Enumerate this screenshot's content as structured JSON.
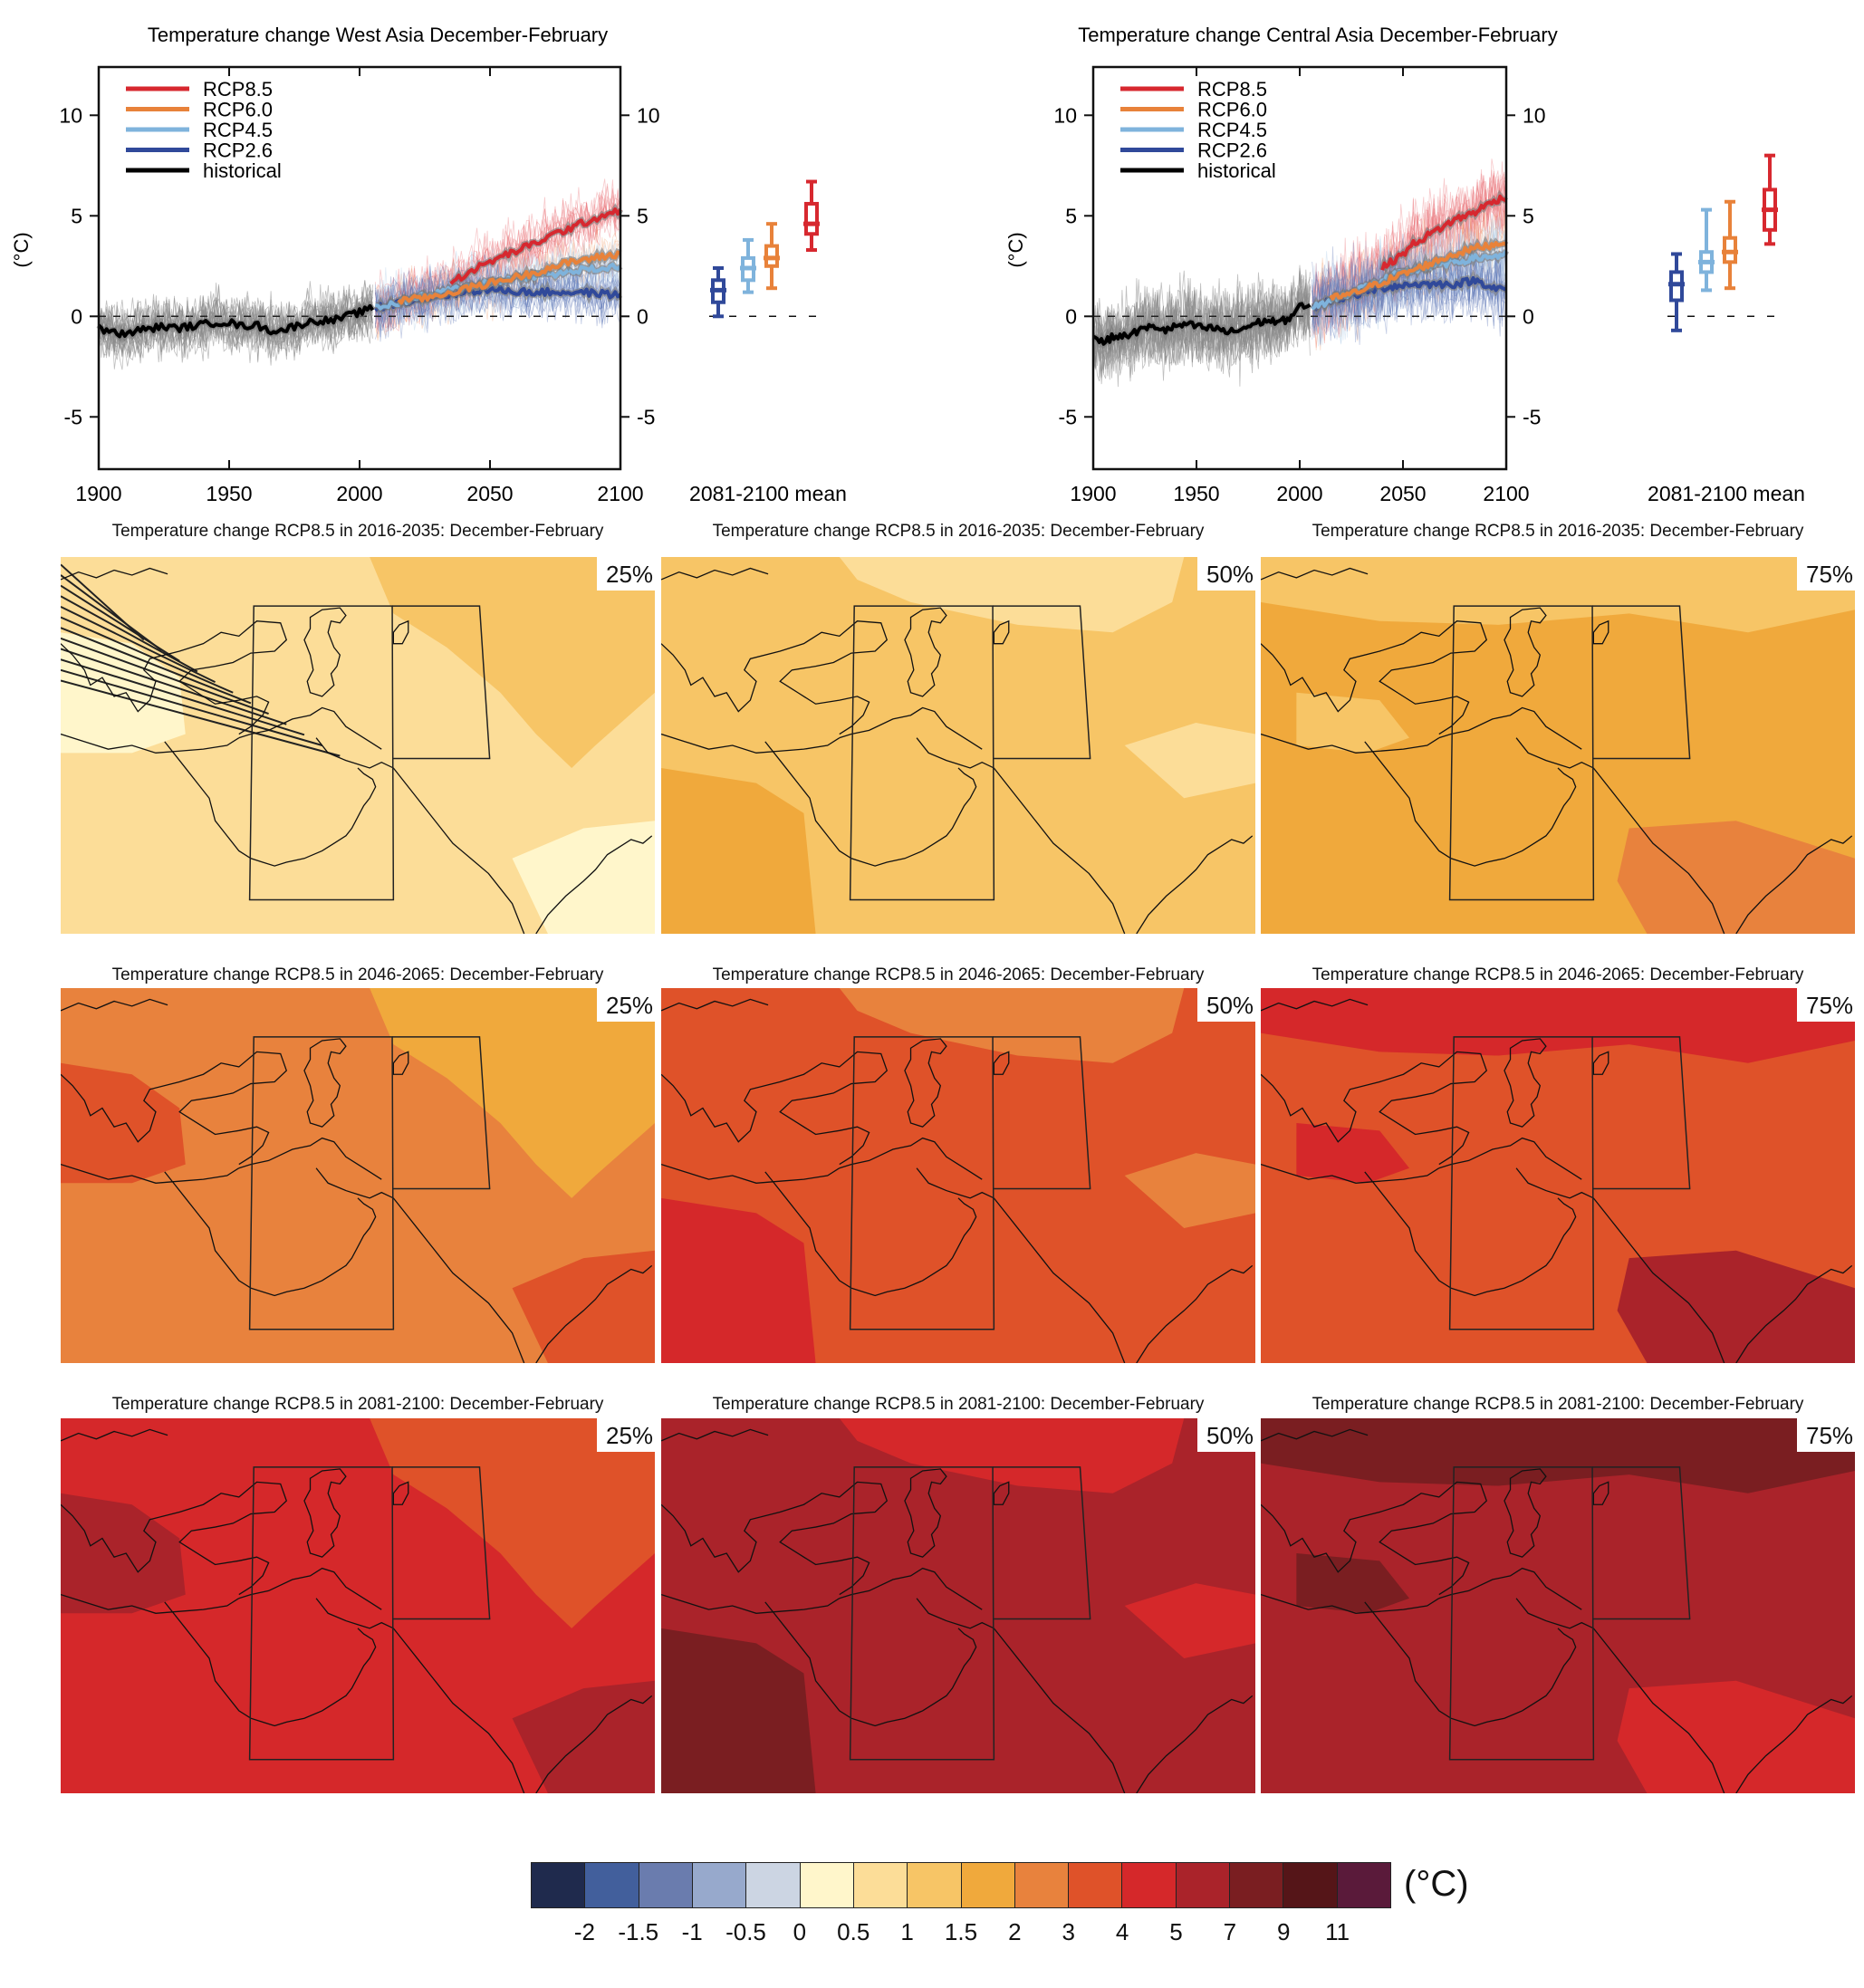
{
  "chart_data": [
    {
      "type": "line",
      "id": "west-asia",
      "title": "Temperature change West Asia December-February",
      "ylabel": "(°C)",
      "xlabel": "",
      "xlim": [
        1900,
        2100
      ],
      "ylim": [
        -7.6,
        12.4
      ],
      "xticks": [
        1900,
        1950,
        2000,
        2050,
        2100
      ],
      "yticks": [
        -5,
        0,
        5,
        10
      ],
      "legend_position": "top-left",
      "legend": [
        {
          "name": "RCP8.5",
          "color": "#d7282f"
        },
        {
          "name": "RCP6.0",
          "color": "#e8823a"
        },
        {
          "name": "RCP4.5",
          "color": "#7fb3dc"
        },
        {
          "name": "RCP2.6",
          "color": "#30499a"
        },
        {
          "name": "historical",
          "color": "#000000"
        }
      ],
      "series": [
        {
          "name": "historical",
          "x": [
            1900,
            1905,
            1910,
            1915,
            1920,
            1925,
            1930,
            1935,
            1940,
            1945,
            1950,
            1955,
            1960,
            1965,
            1970,
            1975,
            1980,
            1985,
            1990,
            1995,
            2000,
            2005
          ],
          "values": [
            -0.6,
            -0.8,
            -0.9,
            -0.7,
            -0.6,
            -0.5,
            -0.6,
            -0.5,
            -0.4,
            -0.3,
            -0.3,
            -0.5,
            -0.4,
            -0.7,
            -0.7,
            -0.5,
            -0.3,
            -0.2,
            -0.2,
            0.0,
            0.2,
            0.4
          ]
        },
        {
          "name": "RCP2.6",
          "x": [
            2006,
            2015,
            2025,
            2035,
            2045,
            2055,
            2065,
            2075,
            2085,
            2095,
            2100
          ],
          "values": [
            0.4,
            0.7,
            0.9,
            1.1,
            1.3,
            1.3,
            1.2,
            1.2,
            1.2,
            1.1,
            1.1
          ]
        },
        {
          "name": "RCP4.5",
          "x": [
            2006,
            2015,
            2025,
            2035,
            2045,
            2055,
            2065,
            2075,
            2085,
            2095,
            2100
          ],
          "values": [
            0.4,
            0.7,
            1.0,
            1.3,
            1.6,
            1.8,
            2.0,
            2.1,
            2.3,
            2.4,
            2.5
          ]
        },
        {
          "name": "RCP6.0",
          "x": [
            2015,
            2025,
            2035,
            2045,
            2055,
            2065,
            2075,
            2085,
            2095,
            2100
          ],
          "values": [
            0.8,
            0.9,
            1.2,
            1.5,
            1.8,
            2.1,
            2.5,
            2.8,
            3.0,
            3.1
          ]
        },
        {
          "name": "RCP8.5",
          "x": [
            2035,
            2045,
            2055,
            2065,
            2075,
            2085,
            2095,
            2100
          ],
          "values": [
            1.7,
            2.4,
            3.0,
            3.5,
            4.1,
            4.6,
            5.1,
            5.3
          ]
        }
      ],
      "boxplot": {
        "label": "2081-2100 mean",
        "boxes": [
          {
            "name": "RCP2.6",
            "color": "#30499a",
            "whisker_low": 0.0,
            "q1": 0.7,
            "median": 1.3,
            "q3": 1.8,
            "whisker_high": 2.4
          },
          {
            "name": "RCP4.5",
            "color": "#7fb3dc",
            "whisker_low": 1.2,
            "q1": 1.8,
            "median": 2.4,
            "q3": 2.9,
            "whisker_high": 3.8
          },
          {
            "name": "RCP6.0",
            "color": "#e8823a",
            "whisker_low": 1.4,
            "q1": 2.5,
            "median": 2.9,
            "q3": 3.5,
            "whisker_high": 4.6
          },
          {
            "name": "RCP8.5",
            "color": "#d7282f",
            "whisker_low": 3.3,
            "q1": 4.1,
            "median": 4.6,
            "q3": 5.6,
            "whisker_high": 6.7
          }
        ]
      }
    },
    {
      "type": "line",
      "id": "central-asia",
      "title": "Temperature change Central Asia December-February",
      "ylabel": "(°C)",
      "xlabel": "",
      "xlim": [
        1900,
        2100
      ],
      "ylim": [
        -7.6,
        12.4
      ],
      "xticks": [
        1900,
        1950,
        2000,
        2050,
        2100
      ],
      "yticks": [
        -5,
        0,
        5,
        10
      ],
      "legend_position": "top-left",
      "legend": [
        {
          "name": "RCP8.5",
          "color": "#d7282f"
        },
        {
          "name": "RCP6.0",
          "color": "#e8823a"
        },
        {
          "name": "RCP4.5",
          "color": "#7fb3dc"
        },
        {
          "name": "RCP2.6",
          "color": "#30499a"
        },
        {
          "name": "historical",
          "color": "#000000"
        }
      ],
      "series": [
        {
          "name": "historical",
          "x": [
            1900,
            1905,
            1910,
            1915,
            1920,
            1925,
            1930,
            1935,
            1940,
            1945,
            1950,
            1955,
            1960,
            1965,
            1970,
            1975,
            1980,
            1985,
            1990,
            1995,
            2000,
            2005
          ],
          "values": [
            -1.0,
            -1.3,
            -1.0,
            -1.0,
            -0.8,
            -0.6,
            -0.5,
            -0.7,
            -0.5,
            -0.4,
            -0.5,
            -0.6,
            -0.6,
            -0.8,
            -0.7,
            -0.5,
            -0.3,
            -0.2,
            -0.3,
            -0.1,
            0.5,
            0.4
          ]
        },
        {
          "name": "RCP2.6",
          "x": [
            2006,
            2015,
            2025,
            2035,
            2045,
            2055,
            2065,
            2075,
            2085,
            2095,
            2100
          ],
          "values": [
            0.4,
            0.8,
            1.0,
            1.3,
            1.5,
            1.6,
            1.6,
            1.6,
            1.8,
            1.4,
            1.3
          ]
        },
        {
          "name": "RCP4.5",
          "x": [
            2006,
            2015,
            2025,
            2035,
            2045,
            2055,
            2065,
            2075,
            2085,
            2095,
            2100
          ],
          "values": [
            0.4,
            0.8,
            1.2,
            1.6,
            2.0,
            2.3,
            2.5,
            2.7,
            2.9,
            3.0,
            3.1
          ]
        },
        {
          "name": "RCP6.0",
          "x": [
            2015,
            2025,
            2035,
            2045,
            2055,
            2065,
            2075,
            2085,
            2095,
            2100
          ],
          "values": [
            0.9,
            1.1,
            1.5,
            1.9,
            2.3,
            2.7,
            3.1,
            3.4,
            3.6,
            3.7
          ]
        },
        {
          "name": "RCP8.5",
          "x": [
            2040,
            2050,
            2055,
            2065,
            2075,
            2085,
            2095,
            2100
          ],
          "values": [
            2.4,
            3.1,
            3.6,
            4.2,
            4.8,
            5.2,
            5.8,
            5.9
          ]
        }
      ],
      "boxplot": {
        "label": "2081-2100 mean",
        "boxes": [
          {
            "name": "RCP2.6",
            "color": "#30499a",
            "whisker_low": -0.7,
            "q1": 0.8,
            "median": 1.6,
            "q3": 2.2,
            "whisker_high": 3.1
          },
          {
            "name": "RCP4.5",
            "color": "#7fb3dc",
            "whisker_low": 1.3,
            "q1": 2.2,
            "median": 2.7,
            "q3": 3.2,
            "whisker_high": 5.3
          },
          {
            "name": "RCP6.0",
            "color": "#e8823a",
            "whisker_low": 1.4,
            "q1": 2.7,
            "median": 3.2,
            "q3": 3.9,
            "whisker_high": 5.7
          },
          {
            "name": "RCP8.5",
            "color": "#d7282f",
            "whisker_low": 3.6,
            "q1": 4.3,
            "median": 5.3,
            "q3": 6.3,
            "whisker_high": 8.0
          }
        ]
      }
    },
    {
      "type": "heatmap",
      "id": "maps",
      "scenario": "RCP8.5",
      "season": "December-February",
      "colorbar": {
        "unit": "(°C)",
        "tick_labels": [
          "-2",
          "-1.5",
          "-1",
          "-0.5",
          "0",
          "0.5",
          "1",
          "1.5",
          "2",
          "3",
          "4",
          "5",
          "7",
          "9",
          "11"
        ],
        "colors": [
          "#1f2a4d",
          "#425f9c",
          "#6a7cae",
          "#97a9cc",
          "#ccd5e3",
          "#fff6cb",
          "#fcdd98",
          "#f7c566",
          "#f0a93c",
          "#e8823d",
          "#df5229",
          "#d5282a",
          "#aa232a",
          "#7a1e21",
          "#551518",
          "#5a1a3a"
        ]
      },
      "panels": [
        {
          "title": "Temperature change RCP8.5 in 2016-2035: December-February",
          "percentile": "25%",
          "period": "2016-2035",
          "base_level": "0.5-1",
          "dominant_colors": [
            "#fcdd98",
            "#f7c566",
            "#fff6cb"
          ],
          "hatched": true
        },
        {
          "title": "Temperature change RCP8.5 in 2016-2035: December-February",
          "percentile": "50%",
          "period": "2016-2035",
          "base_level": "1-1.5",
          "dominant_colors": [
            "#f7c566",
            "#fcdd98",
            "#f0a93c"
          ],
          "hatched": false
        },
        {
          "title": "Temperature change RCP8.5 in 2016-2035: December-February",
          "percentile": "75%",
          "period": "2016-2035",
          "base_level": "1.5-2",
          "dominant_colors": [
            "#f0a93c",
            "#f7c566",
            "#e8823d"
          ],
          "hatched": false
        },
        {
          "title": "Temperature change RCP8.5 in 2046-2065: December-February",
          "percentile": "25%",
          "period": "2046-2065",
          "base_level": "2-3",
          "dominant_colors": [
            "#e8823d",
            "#f0a93c",
            "#df5229"
          ],
          "hatched": false
        },
        {
          "title": "Temperature change RCP8.5 in 2046-2065: December-February",
          "percentile": "50%",
          "period": "2046-2065",
          "base_level": "3-4",
          "dominant_colors": [
            "#df5229",
            "#e8823d",
            "#d5282a"
          ],
          "hatched": false
        },
        {
          "title": "Temperature change RCP8.5 in 2046-2065: December-February",
          "percentile": "75%",
          "period": "2046-2065",
          "base_level": "3-4",
          "dominant_colors": [
            "#df5229",
            "#d5282a",
            "#aa232a"
          ],
          "hatched": false
        },
        {
          "title": "Temperature change RCP8.5 in 2081-2100: December-February",
          "percentile": "25%",
          "period": "2081-2100",
          "base_level": "4-5",
          "dominant_colors": [
            "#d5282a",
            "#df5229",
            "#aa232a"
          ],
          "hatched": false
        },
        {
          "title": "Temperature change RCP8.5 in 2081-2100: December-February",
          "percentile": "50%",
          "period": "2081-2100",
          "base_level": "5-7",
          "dominant_colors": [
            "#aa232a",
            "#d5282a",
            "#7a1e21"
          ],
          "hatched": false
        },
        {
          "title": "Temperature change RCP8.5 in 2081-2100: December-February",
          "percentile": "75%",
          "period": "2081-2100",
          "base_level": "5-7",
          "dominant_colors": [
            "#aa232a",
            "#7a1e21",
            "#d5282a"
          ],
          "hatched": false
        }
      ]
    }
  ]
}
